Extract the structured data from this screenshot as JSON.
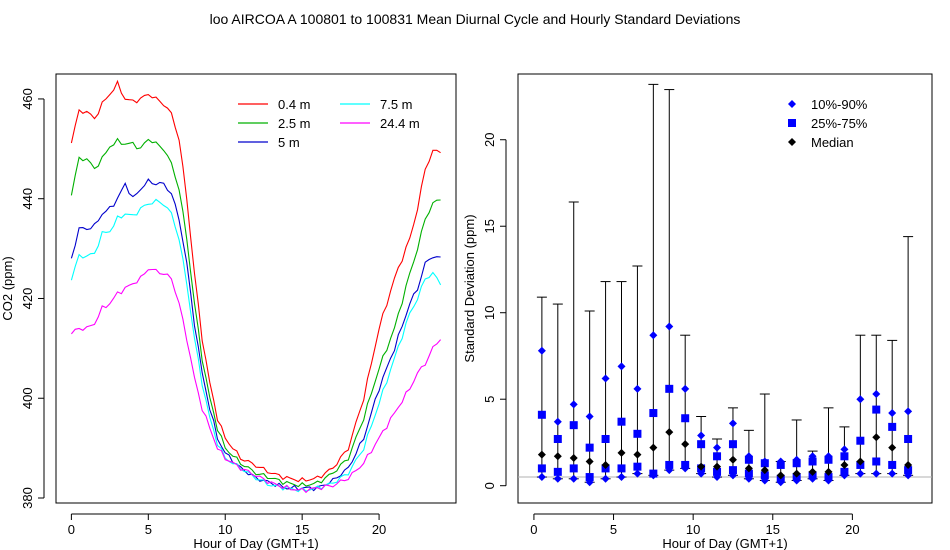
{
  "figure": {
    "title": "loo   AIRCOA A   100801 to 100831   Mean Diurnal Cycle and Hourly Standard Deviations"
  },
  "chart_data": [
    {
      "type": "line",
      "title": "",
      "xlabel": "Hour of Day (GMT+1)",
      "ylabel": "CO2 (ppm)",
      "xlim": [
        -1,
        25
      ],
      "ylim": [
        379,
        465
      ],
      "xticks": [
        0,
        5,
        10,
        15,
        20
      ],
      "yticks": [
        380,
        400,
        420,
        440,
        460
      ],
      "legend_position": "top-right",
      "grid": false,
      "x_step": 0.25,
      "series": [
        {
          "name": "0.4 m",
          "color": "#ff0000",
          "anchors": [
            [
              0,
              451.5
            ],
            [
              0.5,
              457.5
            ],
            [
              1,
              457.5
            ],
            [
              1.5,
              456
            ],
            [
              2,
              459
            ],
            [
              2.5,
              461
            ],
            [
              3,
              463
            ],
            [
              3.5,
              460
            ],
            [
              4,
              459.5
            ],
            [
              4.5,
              460
            ],
            [
              5,
              461
            ],
            [
              5.5,
              460
            ],
            [
              6,
              459
            ],
            [
              6.5,
              457
            ],
            [
              7,
              452
            ],
            [
              7.5,
              440
            ],
            [
              8,
              425
            ],
            [
              8.5,
              412
            ],
            [
              9,
              403
            ],
            [
              9.5,
              396
            ],
            [
              10,
              392
            ],
            [
              11,
              388
            ],
            [
              12,
              386.5
            ],
            [
              13,
              385
            ],
            [
              14,
              384
            ],
            [
              15,
              383.5
            ],
            [
              16,
              384
            ],
            [
              17,
              386
            ],
            [
              18,
              390
            ],
            [
              19,
              400
            ],
            [
              20,
              414
            ],
            [
              21,
              424
            ],
            [
              22,
              432
            ],
            [
              22.5,
              438
            ],
            [
              23,
              446
            ],
            [
              23.5,
              449.5
            ],
            [
              24,
              449.5
            ]
          ]
        },
        {
          "name": "2.5 m",
          "color": "#00b000",
          "anchors": [
            [
              0,
              441
            ],
            [
              0.5,
              448
            ],
            [
              1,
              448
            ],
            [
              1.5,
              446
            ],
            [
              2,
              448
            ],
            [
              2.5,
              450.5
            ],
            [
              3,
              451.5
            ],
            [
              3.5,
              451
            ],
            [
              4,
              451
            ],
            [
              4.5,
              450
            ],
            [
              5,
              452
            ],
            [
              5.5,
              451
            ],
            [
              6,
              450
            ],
            [
              6.5,
              447
            ],
            [
              7,
              442
            ],
            [
              7.5,
              432
            ],
            [
              8,
              419
            ],
            [
              8.5,
              408
            ],
            [
              9,
              400
            ],
            [
              9.5,
              394
            ],
            [
              10,
              390
            ],
            [
              11,
              387
            ],
            [
              12,
              385
            ],
            [
              13,
              384
            ],
            [
              14,
              383
            ],
            [
              15,
              382.5
            ],
            [
              16,
              383
            ],
            [
              17,
              385
            ],
            [
              18,
              388
            ],
            [
              19,
              396
            ],
            [
              20,
              406
            ],
            [
              21,
              414
            ],
            [
              22,
              425
            ],
            [
              22.5,
              430
            ],
            [
              23,
              436
            ],
            [
              23.5,
              439
            ],
            [
              24,
              440
            ]
          ]
        },
        {
          "name": "5 m",
          "color": "#0000cc",
          "anchors": [
            [
              0,
              428
            ],
            [
              0.5,
              434
            ],
            [
              1,
              434
            ],
            [
              1.5,
              434.5
            ],
            [
              2,
              437
            ],
            [
              2.5,
              438
            ],
            [
              3,
              440
            ],
            [
              3.5,
              443
            ],
            [
              4,
              440
            ],
            [
              4.5,
              442
            ],
            [
              5,
              443.5
            ],
            [
              5.5,
              443
            ],
            [
              6,
              443
            ],
            [
              6.5,
              441
            ],
            [
              7,
              436
            ],
            [
              7.5,
              427
            ],
            [
              8,
              415
            ],
            [
              8.5,
              405
            ],
            [
              9,
              398
            ],
            [
              9.5,
              392
            ],
            [
              10,
              389
            ],
            [
              11,
              386
            ],
            [
              12,
              384
            ],
            [
              13,
              383
            ],
            [
              14,
              382
            ],
            [
              15,
              382
            ],
            [
              16,
              382
            ],
            [
              17,
              383.5
            ],
            [
              18,
              386
            ],
            [
              19,
              392
            ],
            [
              20,
              402
            ],
            [
              21,
              410
            ],
            [
              22,
              419
            ],
            [
              22.5,
              422
            ],
            [
              23,
              427
            ],
            [
              23.5,
              428.5
            ],
            [
              24,
              428
            ]
          ]
        },
        {
          "name": "7.5 m",
          "color": "#00ffff",
          "anchors": [
            [
              0,
              424
            ],
            [
              0.5,
              428.5
            ],
            [
              1,
              428.5
            ],
            [
              1.5,
              429
            ],
            [
              2,
              433
            ],
            [
              2.5,
              433.5
            ],
            [
              3,
              436
            ],
            [
              3.5,
              437
            ],
            [
              4,
              436.5
            ],
            [
              4.5,
              438
            ],
            [
              5,
              439
            ],
            [
              5.5,
              439.5
            ],
            [
              6,
              439
            ],
            [
              6.5,
              437
            ],
            [
              7,
              432
            ],
            [
              7.5,
              423
            ],
            [
              8,
              412
            ],
            [
              8.5,
              403
            ],
            [
              9,
              396
            ],
            [
              9.5,
              391
            ],
            [
              10,
              388
            ],
            [
              11,
              386
            ],
            [
              12,
              384
            ],
            [
              13,
              382.5
            ],
            [
              14,
              382
            ],
            [
              15,
              381.5
            ],
            [
              16,
              382
            ],
            [
              17,
              383
            ],
            [
              18,
              385
            ],
            [
              19,
              390
            ],
            [
              20,
              399
            ],
            [
              21,
              408
            ],
            [
              22,
              417
            ],
            [
              22.5,
              420
            ],
            [
              23,
              424
            ],
            [
              23.5,
              425
            ],
            [
              24,
              423
            ]
          ]
        },
        {
          "name": "24.4 m",
          "color": "#ff00ff",
          "anchors": [
            [
              0,
              413
            ],
            [
              0.5,
              414
            ],
            [
              1,
              414
            ],
            [
              1.5,
              415
            ],
            [
              2,
              418
            ],
            [
              2.5,
              419
            ],
            [
              3,
              421
            ],
            [
              3.5,
              422
            ],
            [
              4,
              423
            ],
            [
              4.5,
              424
            ],
            [
              5,
              426
            ],
            [
              5.5,
              425.5
            ],
            [
              6,
              425
            ],
            [
              6.5,
              424
            ],
            [
              7,
              419
            ],
            [
              7.5,
              412
            ],
            [
              8,
              404
            ],
            [
              8.5,
              398
            ],
            [
              9,
              394
            ],
            [
              9.5,
              390
            ],
            [
              10,
              388
            ],
            [
              11,
              386
            ],
            [
              12,
              384.5
            ],
            [
              13,
              383
            ],
            [
              14,
              382
            ],
            [
              15,
              381.5
            ],
            [
              16,
              382
            ],
            [
              17,
              382.5
            ],
            [
              18,
              384
            ],
            [
              19,
              387
            ],
            [
              20,
              392
            ],
            [
              21,
              397
            ],
            [
              22,
              402
            ],
            [
              22.5,
              405
            ],
            [
              23,
              407
            ],
            [
              23.5,
              410
            ],
            [
              24,
              412
            ]
          ]
        }
      ]
    },
    {
      "type": "scatter",
      "title": "",
      "xlabel": "Hour of Day (GMT+1)",
      "ylabel": "Standard Deviation (ppm)",
      "xlim": [
        -1,
        25
      ],
      "ylim": [
        -1,
        23.8
      ],
      "xticks": [
        0,
        5,
        10,
        15,
        20
      ],
      "yticks": [
        0,
        5,
        10,
        15,
        20
      ],
      "legend_position": "top-right",
      "grid": false,
      "reference_line": 0.5,
      "legend": [
        {
          "name": "10%-90%",
          "color": "#0000ff",
          "marker": "diamond"
        },
        {
          "name": "25%-75%",
          "color": "#0000ff",
          "marker": "square"
        },
        {
          "name": "Median",
          "color": "#000000",
          "marker": "diamond"
        }
      ],
      "hours": [
        0.5,
        1.5,
        2.5,
        3.5,
        4.5,
        5.5,
        6.5,
        7.5,
        8.5,
        9.5,
        10.5,
        11.5,
        12.5,
        13.5,
        14.5,
        15.5,
        16.5,
        17.5,
        18.5,
        19.5,
        20.5,
        21.5,
        22.5,
        23.5
      ],
      "max": [
        10.9,
        10.5,
        16.4,
        10.1,
        11.8,
        11.8,
        12.7,
        23.2,
        22.9,
        8.7,
        4.0,
        2.7,
        4.5,
        3.2,
        5.3,
        1.4,
        3.8,
        2.0,
        4.5,
        3.4,
        8.7,
        8.7,
        8.4,
        14.4
      ],
      "p10": [
        0.5,
        0.4,
        0.4,
        0.2,
        0.4,
        0.5,
        0.7,
        0.6,
        0.9,
        1.0,
        0.7,
        0.5,
        0.6,
        0.4,
        0.3,
        0.2,
        0.3,
        0.4,
        0.3,
        0.6,
        0.7,
        0.7,
        0.7,
        0.6
      ],
      "p25": [
        1.0,
        0.8,
        1.0,
        0.5,
        1.0,
        1.0,
        1.1,
        0.7,
        1.2,
        1.2,
        1.0,
        0.8,
        0.9,
        0.7,
        0.6,
        0.4,
        0.5,
        0.6,
        0.5,
        0.8,
        1.2,
        1.4,
        1.2,
        0.9
      ],
      "median": [
        1.8,
        1.7,
        1.6,
        1.4,
        1.2,
        1.9,
        1.8,
        2.2,
        3.1,
        2.4,
        1.1,
        1.1,
        1.5,
        1.0,
        0.9,
        0.6,
        0.7,
        0.8,
        0.8,
        1.2,
        1.4,
        2.8,
        2.2,
        1.2
      ],
      "p75": [
        4.1,
        2.7,
        3.5,
        2.2,
        2.7,
        3.7,
        3.0,
        4.2,
        5.6,
        3.9,
        2.4,
        1.7,
        2.4,
        1.5,
        1.3,
        1.2,
        1.3,
        1.4,
        1.5,
        1.7,
        2.6,
        4.4,
        3.4,
        2.7
      ],
      "p90": [
        7.8,
        3.7,
        4.7,
        4.0,
        6.2,
        6.9,
        5.6,
        8.7,
        9.2,
        5.6,
        2.9,
        2.2,
        3.6,
        1.7,
        1.4,
        1.4,
        1.5,
        1.7,
        1.7,
        2.1,
        5.0,
        5.3,
        4.2,
        4.3
      ]
    }
  ]
}
